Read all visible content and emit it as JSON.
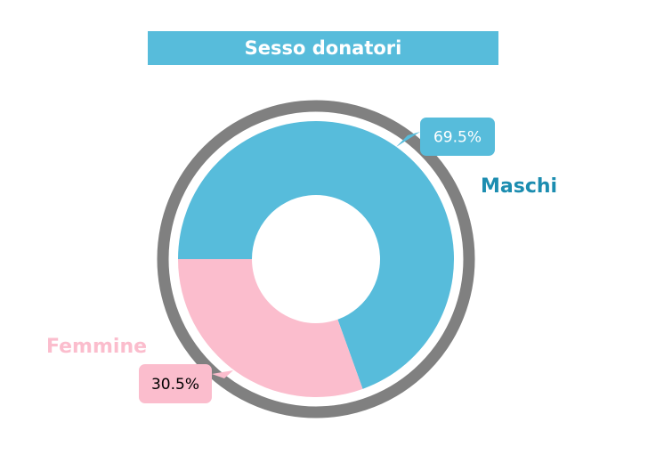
{
  "chart_data": {
    "type": "donut",
    "title": "Sesso donatori",
    "categories": [
      "Maschi",
      "Femmine"
    ],
    "values": [
      69.5,
      30.5
    ],
    "value_labels": [
      "69.5%",
      "30.5%"
    ],
    "colors": [
      "#57bcdb",
      "#fbbdcd"
    ]
  }
}
